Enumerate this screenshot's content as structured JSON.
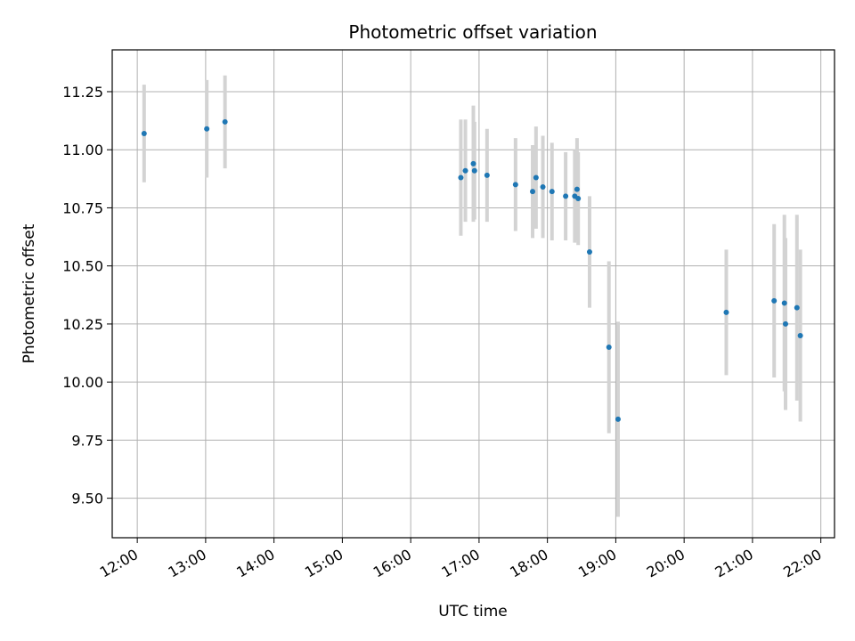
{
  "chart_data": {
    "type": "scatter",
    "title": "Photometric offset variation",
    "xlabel": "UTC time",
    "ylabel": "Photometric offset",
    "grid": true,
    "x_axis": {
      "scale": "time",
      "range": [
        "11:38",
        "22:12"
      ],
      "tick_labels": [
        "12:00",
        "13:00",
        "14:00",
        "15:00",
        "16:00",
        "17:00",
        "18:00",
        "19:00",
        "20:00",
        "21:00",
        "22:00"
      ]
    },
    "y_axis": {
      "range": [
        9.33,
        11.43
      ],
      "tick_values": [
        9.5,
        9.75,
        10.0,
        10.25,
        10.5,
        10.75,
        11.0,
        11.25
      ],
      "tick_labels": [
        "9.50",
        "9.75",
        "10.00",
        "10.25",
        "10.50",
        "10.75",
        "11.00",
        "11.25"
      ]
    },
    "colors": {
      "point": "#1f77b4",
      "errorbar": "#d3d3d3",
      "grid": "#b0b0b0"
    },
    "points": [
      {
        "x": "12:06",
        "y": 11.07,
        "err": 0.21
      },
      {
        "x": "13:01",
        "y": 11.09,
        "err": 0.21
      },
      {
        "x": "13:17",
        "y": 11.12,
        "err": 0.2
      },
      {
        "x": "16:44",
        "y": 10.88,
        "err": 0.25
      },
      {
        "x": "16:48",
        "y": 10.91,
        "err": 0.22
      },
      {
        "x": "16:55",
        "y": 10.94,
        "err": 0.25
      },
      {
        "x": "16:56",
        "y": 10.91,
        "err": 0.21
      },
      {
        "x": "17:07",
        "y": 10.89,
        "err": 0.2
      },
      {
        "x": "17:32",
        "y": 10.85,
        "err": 0.2
      },
      {
        "x": "17:47",
        "y": 10.82,
        "err": 0.2
      },
      {
        "x": "17:50",
        "y": 10.88,
        "err": 0.22
      },
      {
        "x": "17:56",
        "y": 10.84,
        "err": 0.22
      },
      {
        "x": "18:04",
        "y": 10.82,
        "err": 0.21
      },
      {
        "x": "18:16",
        "y": 10.8,
        "err": 0.19
      },
      {
        "x": "18:24",
        "y": 10.8,
        "err": 0.2
      },
      {
        "x": "18:26",
        "y": 10.83,
        "err": 0.22
      },
      {
        "x": "18:27",
        "y": 10.79,
        "err": 0.2
      },
      {
        "x": "18:37",
        "y": 10.56,
        "err": 0.24
      },
      {
        "x": "18:54",
        "y": 10.15,
        "err": 0.37
      },
      {
        "x": "19:02",
        "y": 9.84,
        "err": 0.42
      },
      {
        "x": "20:37",
        "y": 10.3,
        "err": 0.27
      },
      {
        "x": "21:19",
        "y": 10.35,
        "err": 0.33
      },
      {
        "x": "21:28",
        "y": 10.34,
        "err": 0.38
      },
      {
        "x": "21:29",
        "y": 10.25,
        "err": 0.37
      },
      {
        "x": "21:39",
        "y": 10.32,
        "err": 0.4
      },
      {
        "x": "21:42",
        "y": 10.2,
        "err": 0.37
      }
    ]
  }
}
